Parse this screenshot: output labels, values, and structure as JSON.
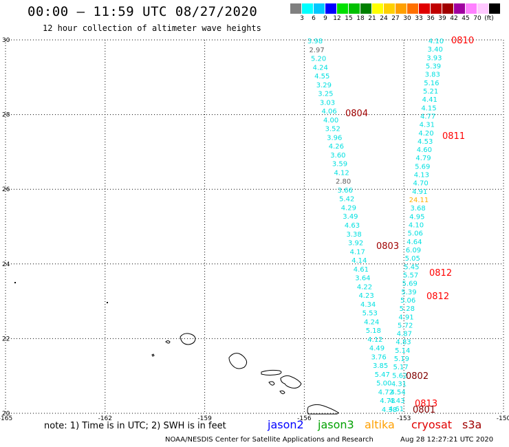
{
  "header": {
    "title": "00:00 – 11:59 UTC 08/27/2020",
    "subtitle": "12 hour collection of altimeter wave heights"
  },
  "legend": {
    "colors": [
      "#808080",
      "#00ffff",
      "#00c8ff",
      "#0000ff",
      "#00e000",
      "#00c000",
      "#008000",
      "#ffff00",
      "#ffd000",
      "#ffa000",
      "#ff7000",
      "#e00000",
      "#c00000",
      "#a00000",
      "#a000a0",
      "#ff80ff",
      "#ffc8ff",
      "#000000"
    ],
    "labels": [
      "3",
      "6",
      "9",
      "12",
      "15",
      "18",
      "21",
      "24",
      "27",
      "30",
      "33",
      "36",
      "39",
      "42",
      "45",
      "70",
      "(ft)"
    ]
  },
  "axes": {
    "lon_ticks": [
      "-165",
      "-162",
      "-159",
      "-156",
      "-153",
      "-150"
    ],
    "lat_ticks": [
      "30",
      "28",
      "26",
      "24",
      "22",
      "20"
    ],
    "lon_range": [
      -165,
      -150
    ],
    "lat_range": [
      20,
      30
    ],
    "grid": "dotted"
  },
  "passes": [
    {
      "label": "0810",
      "color": "#ff0000"
    },
    {
      "label": "0804",
      "color": "#a00000"
    },
    {
      "label": "0811",
      "color": "#ff0000"
    },
    {
      "label": "0803",
      "color": "#a00000"
    },
    {
      "label": "0812",
      "color": "#ff0000"
    },
    {
      "label": "0812",
      "color": "#ff0000"
    },
    {
      "label": "0802",
      "color": "#800000"
    },
    {
      "label": "0813",
      "color": "#ff0000"
    },
    {
      "label": "0801",
      "color": "#800000"
    }
  ],
  "track_a": {
    "values": [
      "3.98",
      "2.97",
      "5.20",
      "4.24",
      "4.55",
      "3.29",
      "3.25",
      "3.03",
      "4.06",
      "4.00",
      "3.52",
      "3.96",
      "4.26",
      "3.60",
      "3.59",
      "4.12",
      "2.80",
      "3.66",
      "5.42",
      "4.29",
      "3.49",
      "4.63",
      "3.38",
      "3.92",
      "4.17",
      "4.14",
      "4.61",
      "3.64",
      "4.22",
      "4.23",
      "4.34",
      "5.53",
      "4.24",
      "5.18",
      "4.12",
      "4.49",
      "3.76",
      "3.85",
      "5.47",
      "5.00",
      "4.72",
      "4.73",
      "4.38"
    ],
    "colors": [
      "#00e0e0",
      "#606060"
    ]
  },
  "track_b": {
    "values": [
      "4.10",
      "3.40",
      "3.93",
      "5.39",
      "3.83",
      "5.16",
      "5.21",
      "4.41",
      "4.15",
      "4.77",
      "4.31",
      "4.20",
      "4.53",
      "4.60",
      "4.79",
      "5.69",
      "4.13",
      "4.70",
      "4.91",
      "24.11",
      "3.68",
      "4.95",
      "4.10",
      "5.06",
      "4.64",
      "6.09",
      "5.05",
      "5.45",
      "5.57",
      "5.69",
      "5.39",
      "5.06",
      "5.28",
      "4.91",
      "5.72",
      "4.87",
      "4.83",
      "5.14",
      "5.19",
      "5.17",
      "5.62",
      "4.31",
      "4.54",
      "4.43",
      "4.61"
    ],
    "colors": [
      "#00e0e0",
      "#ffb000"
    ]
  },
  "note": "note:  1) Time is in UTC;  2) SWH is in feet",
  "missions": [
    {
      "name": "jason2",
      "color": "#0000ff"
    },
    {
      "name": "jason3",
      "color": "#00a000"
    },
    {
      "name": "altika",
      "color": "#ffa000"
    },
    {
      "name": "cryosat",
      "color": "#e00000"
    },
    {
      "name": "s3a",
      "color": "#a00000"
    }
  ],
  "footer": {
    "credit": "NOAA/NESDIS Center for Satellite Applications and Research",
    "timestamp": "Aug 28 12:27:21 UTC 2020"
  }
}
